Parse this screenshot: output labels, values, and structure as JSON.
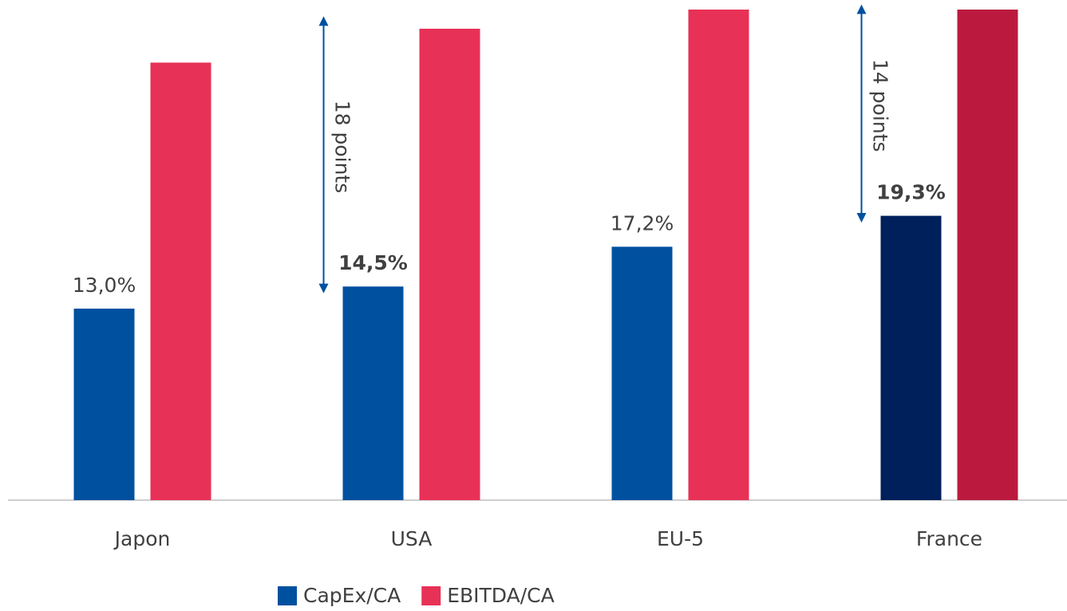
{
  "chart_data": {
    "type": "bar",
    "categories": [
      "Japon",
      "USA",
      "EU-5",
      "France"
    ],
    "series": [
      {
        "name": "CapEx/CA",
        "color": "#0050a0",
        "colors": [
          "#0050a0",
          "#0050a0",
          "#0050a0",
          "#00205b"
        ],
        "values": [
          13.0,
          14.5,
          17.2,
          19.3
        ],
        "value_labels": [
          "13,0%",
          "14,5%",
          "17,2%",
          "19,3%"
        ],
        "value_label_bold": [
          false,
          true,
          false,
          true
        ]
      },
      {
        "name": "EBITDA/CA",
        "color": "#e83157",
        "colors": [
          "#e83157",
          "#e83157",
          "#e83157",
          "#bb1a3e"
        ],
        "values": [
          29.7,
          32.0,
          33.3,
          33.3
        ]
      }
    ],
    "ylim": [
      0,
      33.3
    ],
    "annotations": [
      {
        "text": "18 points",
        "category": 1,
        "from": 14.5,
        "to": 32.5
      },
      {
        "text": "14 points",
        "category": 3,
        "from": 19.3,
        "to": 33.3
      }
    ],
    "legend": "bottom"
  }
}
